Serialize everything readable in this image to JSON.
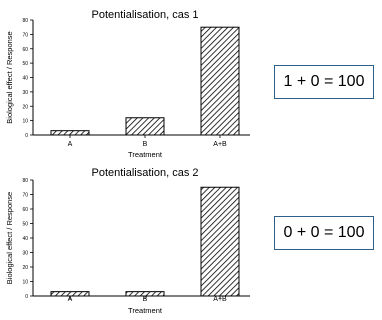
{
  "colors": {
    "box_border": "#2f5f86",
    "bar_fill_pattern": "diagonal-hatch"
  },
  "equations": [
    "1 + 0 = 100",
    "0 + 0 = 100"
  ],
  "chart_data": [
    {
      "type": "bar",
      "title": "Potentialisation, cas 1",
      "xlabel": "Treatment",
      "ylabel": "Biological effect / Response",
      "categories": [
        "A",
        "B",
        "A+B"
      ],
      "values": [
        3,
        12,
        75
      ],
      "ylim": [
        0,
        80
      ],
      "yticks": [
        0,
        10,
        20,
        30,
        40,
        50,
        60,
        70,
        80
      ],
      "grid": false
    },
    {
      "type": "bar",
      "title": "Potentialisation, cas 2",
      "xlabel": "Treatment",
      "ylabel": "Biological effect / Response",
      "categories": [
        "A",
        "B",
        "A+B"
      ],
      "values": [
        3,
        3,
        75
      ],
      "ylim": [
        0,
        80
      ],
      "yticks": [
        0,
        10,
        20,
        30,
        40,
        50,
        60,
        70,
        80
      ],
      "grid": false
    }
  ]
}
